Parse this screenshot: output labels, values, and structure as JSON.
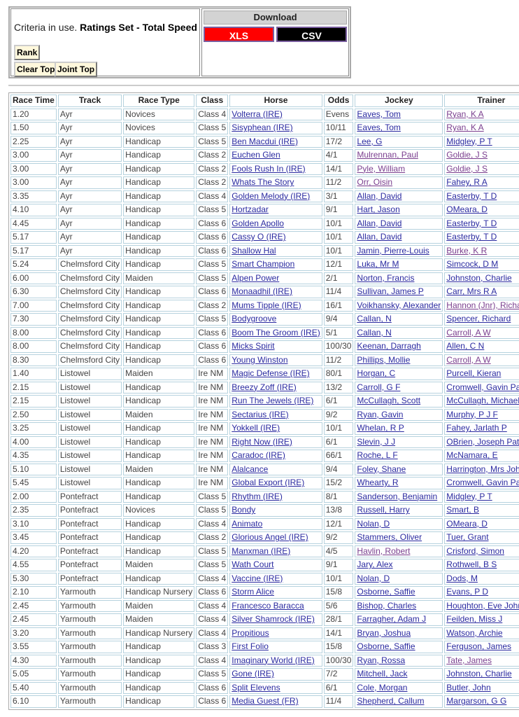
{
  "criteria": {
    "prefix": "Criteria in use.",
    "value": "Ratings Set - Total Speed"
  },
  "buttons": {
    "rank": "Rank",
    "clear_top": "Clear Top",
    "joint_top": "Joint Top"
  },
  "download": {
    "title": "Download",
    "xls": "XLS",
    "csv": "CSV",
    "xls_color": "#ff0000",
    "csv_color": "#000000"
  },
  "colors": {
    "link": "#2a2aa0",
    "visited_link": "#7a3e8e",
    "cell_border": "#b6d2de"
  },
  "columns": [
    "Race Time",
    "Track",
    "Race Type",
    "Class",
    "Horse",
    "Odds",
    "Jockey",
    "Trainer"
  ],
  "rows": [
    [
      "1.20",
      "Ayr",
      "Novices",
      "Class 4",
      "Volterra (IRE)",
      "Evens",
      "Eaves, Tom",
      "Ryan, K A",
      false,
      true
    ],
    [
      "1.50",
      "Ayr",
      "Novices",
      "Class 5",
      "Sisyphean (IRE)",
      "10/11",
      "Eaves, Tom",
      "Ryan, K A",
      false,
      true
    ],
    [
      "2.25",
      "Ayr",
      "Handicap",
      "Class 5",
      "Ben Macdui (IRE)",
      "17/2",
      "Lee, G",
      "Midgley, P T",
      false,
      false
    ],
    [
      "3.00",
      "Ayr",
      "Handicap",
      "Class 2",
      "Euchen Glen",
      "4/1",
      "Mulrennan, Paul",
      "Goldie, J S",
      true,
      true
    ],
    [
      "3.00",
      "Ayr",
      "Handicap",
      "Class 2",
      "Fools Rush In (IRE)",
      "14/1",
      "Pyle, William",
      "Goldie, J S",
      true,
      true
    ],
    [
      "3.00",
      "Ayr",
      "Handicap",
      "Class 2",
      "Whats The Story",
      "11/2",
      "Orr, Oisin",
      "Fahey, R A",
      true,
      false
    ],
    [
      "3.35",
      "Ayr",
      "Handicap",
      "Class 4",
      "Golden Melody (IRE)",
      "3/1",
      "Allan, David",
      "Easterby, T D",
      false,
      false
    ],
    [
      "4.10",
      "Ayr",
      "Handicap",
      "Class 5",
      "Hortzadar",
      "9/1",
      "Hart, Jason",
      "OMeara, D",
      false,
      false
    ],
    [
      "4.45",
      "Ayr",
      "Handicap",
      "Class 6",
      "Golden Apollo",
      "10/1",
      "Allan, David",
      "Easterby, T D",
      false,
      false
    ],
    [
      "5.17",
      "Ayr",
      "Handicap",
      "Class 6",
      "Cassy O (IRE)",
      "10/1",
      "Allan, David",
      "Easterby, T D",
      false,
      false
    ],
    [
      "5.17",
      "Ayr",
      "Handicap",
      "Class 6",
      "Shallow Hal",
      "10/1",
      "Jamin, Pierre-Louis",
      "Burke, K R",
      false,
      true
    ],
    [
      "5.24",
      "Chelmsford City",
      "Handicap",
      "Class 5",
      "Smart Champion",
      "12/1",
      "Luka, Mr M",
      "Simcock, D M",
      false,
      false
    ],
    [
      "6.00",
      "Chelmsford City",
      "Maiden",
      "Class 5",
      "Alpen Power",
      "2/1",
      "Norton, Francis",
      "Johnston, Charlie",
      false,
      false
    ],
    [
      "6.30",
      "Chelmsford City",
      "Handicap",
      "Class 6",
      "Monaadhil (IRE)",
      "11/4",
      "Sullivan, James P",
      "Carr, Mrs R A",
      false,
      false
    ],
    [
      "7.00",
      "Chelmsford City",
      "Handicap",
      "Class 2",
      "Mums Tipple (IRE)",
      "16/1",
      "Voikhansky, Alexander",
      "Hannon (Jnr), Richard",
      false,
      true
    ],
    [
      "7.30",
      "Chelmsford City",
      "Handicap",
      "Class 5",
      "Bodygroove",
      "9/4",
      "Callan, N",
      "Spencer, Richard",
      false,
      false
    ],
    [
      "8.00",
      "Chelmsford City",
      "Handicap",
      "Class 6",
      "Boom The Groom (IRE)",
      "5/1",
      "Callan, N",
      "Carroll, A W",
      false,
      true
    ],
    [
      "8.00",
      "Chelmsford City",
      "Handicap",
      "Class 6",
      "Micks Spirit",
      "100/30",
      "Keenan, Darragh",
      "Allen, C N",
      false,
      false
    ],
    [
      "8.30",
      "Chelmsford City",
      "Handicap",
      "Class 6",
      "Young Winston",
      "11/2",
      "Phillips, Mollie",
      "Carroll, A W",
      false,
      true
    ],
    [
      "1.40",
      "Listowel",
      "Maiden",
      "Ire NM",
      "Magic Defense (IRE)",
      "80/1",
      "Horgan, C",
      "Purcell, Kieran",
      false,
      false
    ],
    [
      "2.15",
      "Listowel",
      "Handicap",
      "Ire NM",
      "Breezy Zoff (IRE)",
      "13/2",
      "Carroll, G F",
      "Cromwell, Gavin Patrick",
      false,
      false
    ],
    [
      "2.15",
      "Listowel",
      "Handicap",
      "Ire NM",
      "Run The Jewels (IRE)",
      "6/1",
      "McCullagh, Scott",
      "McCullagh, Michael",
      false,
      false
    ],
    [
      "2.50",
      "Listowel",
      "Maiden",
      "Ire NM",
      "Sectarius (IRE)",
      "9/2",
      "Ryan, Gavin",
      "Murphy, P J F",
      false,
      false
    ],
    [
      "3.25",
      "Listowel",
      "Handicap",
      "Ire NM",
      "Yokkell (IRE)",
      "10/1",
      "Whelan, R P",
      "Fahey, Jarlath P",
      false,
      false
    ],
    [
      "4.00",
      "Listowel",
      "Handicap",
      "Ire NM",
      "Right Now (IRE)",
      "6/1",
      "Slevin, J J",
      "OBrien, Joseph Patrick",
      false,
      false
    ],
    [
      "4.35",
      "Listowel",
      "Handicap",
      "Ire NM",
      "Caradoc (IRE)",
      "66/1",
      "Roche, L F",
      "McNamara, E",
      false,
      false
    ],
    [
      "5.10",
      "Listowel",
      "Maiden",
      "Ire NM",
      "Alalcance",
      "9/4",
      "Foley, Shane",
      "Harrington, Mrs John",
      false,
      false
    ],
    [
      "5.45",
      "Listowel",
      "Handicap",
      "Ire NM",
      "Global Export (IRE)",
      "15/2",
      "Whearty, R",
      "Cromwell, Gavin Patrick",
      false,
      false
    ],
    [
      "2.00",
      "Pontefract",
      "Handicap",
      "Class 5",
      "Rhythm (IRE)",
      "8/1",
      "Sanderson, Benjamin",
      "Midgley, P T",
      false,
      false
    ],
    [
      "2.35",
      "Pontefract",
      "Novices",
      "Class 5",
      "Bondy",
      "13/8",
      "Russell, Harry",
      "Smart, B",
      false,
      false
    ],
    [
      "3.10",
      "Pontefract",
      "Handicap",
      "Class 4",
      "Animato",
      "12/1",
      "Nolan, D",
      "OMeara, D",
      false,
      false
    ],
    [
      "3.45",
      "Pontefract",
      "Handicap",
      "Class 2",
      "Glorious Angel (IRE)",
      "9/2",
      "Stammers, Oliver",
      "Tuer, Grant",
      false,
      false
    ],
    [
      "4.20",
      "Pontefract",
      "Handicap",
      "Class 5",
      "Manxman (IRE)",
      "4/5",
      "Havlin, Robert",
      "Crisford, Simon",
      true,
      false
    ],
    [
      "4.55",
      "Pontefract",
      "Maiden",
      "Class 5",
      "Wath Court",
      "9/1",
      "Jary, Alex",
      "Rothwell, B S",
      false,
      false
    ],
    [
      "5.30",
      "Pontefract",
      "Handicap",
      "Class 4",
      "Vaccine (IRE)",
      "10/1",
      "Nolan, D",
      "Dods, M",
      false,
      false
    ],
    [
      "2.10",
      "Yarmouth",
      "Handicap Nursery",
      "Class 6",
      "Storm Alice",
      "15/8",
      "Osborne, Saffie",
      "Evans, P D",
      false,
      false
    ],
    [
      "2.45",
      "Yarmouth",
      "Maiden",
      "Class 4",
      "Francesco Baracca",
      "5/6",
      "Bishop, Charles",
      "Houghton, Eve Johnson",
      false,
      false
    ],
    [
      "2.45",
      "Yarmouth",
      "Maiden",
      "Class 4",
      "Silver Shamrock (IRE)",
      "28/1",
      "Farragher, Adam J",
      "Feilden, Miss J",
      false,
      false
    ],
    [
      "3.20",
      "Yarmouth",
      "Handicap Nursery",
      "Class 4",
      "Propitious",
      "14/1",
      "Bryan, Joshua",
      "Watson, Archie",
      false,
      false
    ],
    [
      "3.55",
      "Yarmouth",
      "Handicap",
      "Class 3",
      "First Folio",
      "15/8",
      "Osborne, Saffie",
      "Ferguson, James",
      false,
      false
    ],
    [
      "4.30",
      "Yarmouth",
      "Handicap",
      "Class 4",
      "Imaginary World (IRE)",
      "100/30",
      "Ryan, Rossa",
      "Tate, James",
      false,
      true
    ],
    [
      "5.05",
      "Yarmouth",
      "Handicap",
      "Class 5",
      "Gone (IRE)",
      "7/2",
      "Mitchell, Jack",
      "Johnston, Charlie",
      false,
      false
    ],
    [
      "5.40",
      "Yarmouth",
      "Handicap",
      "Class 6",
      "Split Elevens",
      "6/1",
      "Cole, Morgan",
      "Butler, John",
      false,
      false
    ],
    [
      "6.10",
      "Yarmouth",
      "Handicap",
      "Class 6",
      "Media Guest (FR)",
      "11/4",
      "Shepherd, Callum",
      "Margarson, G G",
      false,
      false
    ]
  ]
}
